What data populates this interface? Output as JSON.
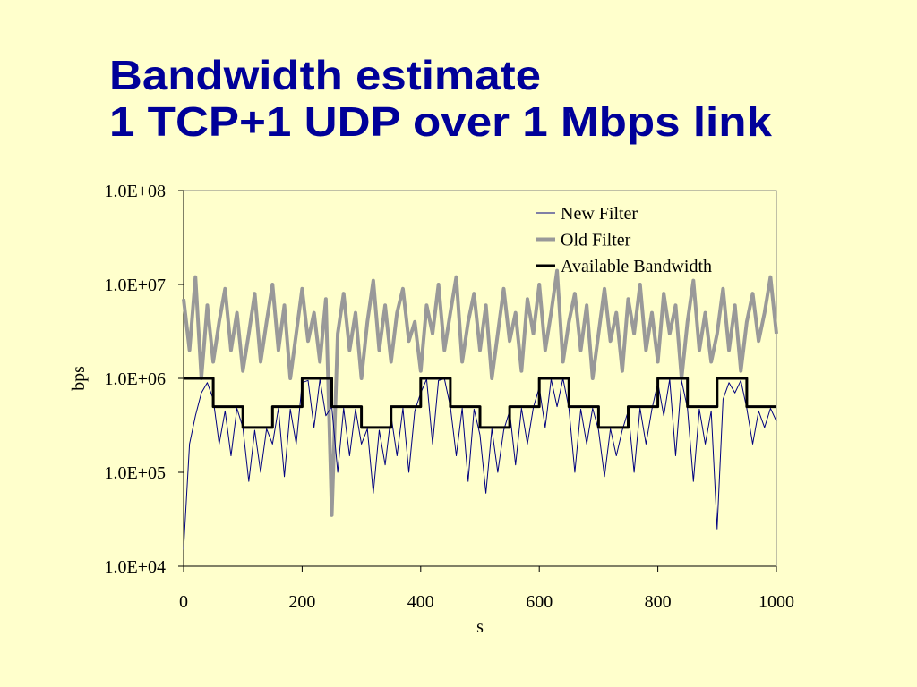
{
  "chart_data": {
    "type": "line",
    "title": "Bandwidth estimate",
    "subtitle": "1 TCP+1 UDP over 1 Mbps link",
    "xlabel": "s",
    "ylabel": "bps",
    "log_y": true,
    "legend": "upper right",
    "xlim": [
      0,
      1000
    ],
    "xticks": [
      0,
      200,
      400,
      600,
      800,
      1000
    ],
    "ylim": [
      10000,
      100000000
    ],
    "yticks": [
      {
        "value": 10000,
        "label": "1.0E+04"
      },
      {
        "value": 100000,
        "label": "1.0E+05"
      },
      {
        "value": 1000000,
        "label": "1.0E+06"
      },
      {
        "value": 10000000,
        "label": "1.0E+07"
      },
      {
        "value": 100000000,
        "label": "1.0E+08"
      }
    ],
    "x": [
      0,
      10,
      20,
      30,
      40,
      50,
      60,
      70,
      80,
      90,
      100,
      110,
      120,
      130,
      140,
      150,
      160,
      170,
      180,
      190,
      200,
      210,
      220,
      230,
      240,
      250,
      260,
      270,
      280,
      290,
      300,
      310,
      320,
      330,
      340,
      350,
      360,
      370,
      380,
      390,
      400,
      410,
      420,
      430,
      440,
      450,
      460,
      470,
      480,
      490,
      500,
      510,
      520,
      530,
      540,
      550,
      560,
      570,
      580,
      590,
      600,
      610,
      620,
      630,
      640,
      650,
      660,
      670,
      680,
      690,
      700,
      710,
      720,
      730,
      740,
      750,
      760,
      770,
      780,
      790,
      800,
      810,
      820,
      830,
      840,
      850,
      860,
      870,
      880,
      890,
      900,
      910,
      920,
      930,
      940,
      950,
      960,
      970,
      980,
      990,
      1000
    ],
    "series": [
      {
        "name": "Old Filter",
        "color": "#999999",
        "line_width": 4,
        "values": [
          7000000,
          2000000,
          12000000,
          1000000,
          6000000,
          1500000,
          4000000,
          9000000,
          2000000,
          5000000,
          1200000,
          3000000,
          8000000,
          1500000,
          4000000,
          10000000,
          2000000,
          6000000,
          1000000,
          3000000,
          9000000,
          2500000,
          5000000,
          1500000,
          7000000,
          35000,
          3000000,
          8000000,
          2000000,
          5000000,
          1000000,
          4000000,
          11000000,
          2000000,
          6000000,
          1500000,
          5000000,
          9000000,
          2500000,
          4000000,
          1200000,
          6000000,
          3000000,
          10000000,
          2000000,
          5000000,
          12000000,
          1500000,
          4000000,
          8000000,
          2000000,
          6000000,
          1000000,
          3000000,
          9000000,
          2500000,
          5000000,
          1200000,
          7000000,
          3000000,
          10000000,
          2000000,
          5000000,
          14000000,
          1500000,
          4000000,
          8000000,
          2000000,
          6000000,
          1000000,
          3000000,
          9000000,
          2500000,
          5000000,
          1200000,
          7000000,
          3000000,
          10000000,
          2000000,
          5000000,
          1500000,
          8000000,
          3000000,
          6000000,
          1000000,
          4000000,
          11000000,
          2000000,
          5000000,
          1500000,
          3000000,
          9000000,
          2000000,
          6000000,
          1200000,
          4000000,
          8000000,
          2500000,
          5000000,
          12000000,
          3000000
        ]
      },
      {
        "name": "New Filter",
        "color": "#000080",
        "line_width": 1,
        "values": [
          15000,
          200000,
          400000,
          700000,
          900000,
          600000,
          200000,
          450000,
          150000,
          480000,
          300000,
          80000,
          280000,
          100000,
          290000,
          200000,
          480000,
          90000,
          470000,
          200000,
          900000,
          950000,
          300000,
          980000,
          400000,
          500000,
          100000,
          480000,
          150000,
          470000,
          200000,
          290000,
          60000,
          280000,
          120000,
          400000,
          150000,
          480000,
          100000,
          450000,
          700000,
          980000,
          200000,
          950000,
          990000,
          500000,
          150000,
          480000,
          80000,
          470000,
          250000,
          60000,
          290000,
          100000,
          280000,
          450000,
          120000,
          480000,
          200000,
          490000,
          800000,
          300000,
          980000,
          500000,
          1000000,
          480000,
          100000,
          470000,
          200000,
          480000,
          280000,
          90000,
          290000,
          150000,
          280000,
          450000,
          100000,
          480000,
          200000,
          470000,
          900000,
          400000,
          980000,
          150000,
          950000,
          480000,
          80000,
          470000,
          200000,
          450000,
          25000,
          600000,
          900000,
          700000,
          950000,
          480000,
          200000,
          450000,
          300000,
          480000,
          350000
        ]
      },
      {
        "name": "Available Bandwidth",
        "color": "#000000",
        "line_width": 3,
        "x": [
          0,
          50,
          50,
          100,
          100,
          150,
          150,
          200,
          200,
          250,
          250,
          300,
          300,
          350,
          350,
          400,
          400,
          450,
          450,
          500,
          500,
          550,
          550,
          600,
          600,
          650,
          650,
          700,
          700,
          750,
          750,
          800,
          800,
          850,
          850,
          900,
          900,
          950,
          950,
          1000
        ],
        "values": [
          1000000,
          1000000,
          500000,
          500000,
          300000,
          300000,
          500000,
          500000,
          1000000,
          1000000,
          500000,
          500000,
          300000,
          300000,
          500000,
          500000,
          1000000,
          1000000,
          500000,
          500000,
          300000,
          300000,
          500000,
          500000,
          1000000,
          1000000,
          500000,
          500000,
          300000,
          300000,
          500000,
          500000,
          1000000,
          1000000,
          500000,
          500000,
          1000000,
          1000000,
          500000,
          500000
        ]
      }
    ]
  }
}
